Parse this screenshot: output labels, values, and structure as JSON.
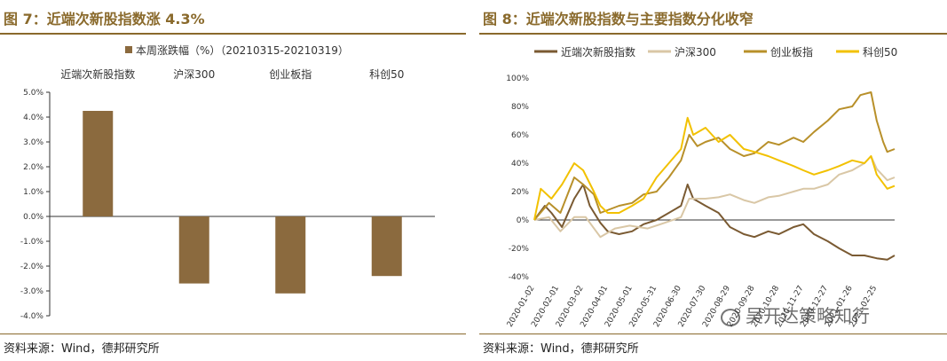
{
  "left": {
    "title": "图 7：近端次新股指数涨 4.3%",
    "source": "资料来源：Wind，德邦研究所"
  },
  "right": {
    "title": "图 8：近端次新股指数与主要指数分化收窄",
    "source": "资料来源：Wind，德邦研究所"
  },
  "watermark": {
    "text": "吴开达策略知行",
    "icon": "wechat-icon"
  },
  "chart_data": [
    {
      "type": "bar",
      "legend": [
        "本周涨跌幅（%）（20210315-20210319）"
      ],
      "legend_position": "top-center",
      "categories": [
        "近端次新股指数",
        "沪深300",
        "创业板指",
        "科创50"
      ],
      "values": [
        4.25,
        -2.7,
        -3.1,
        -2.4
      ],
      "ylim": [
        -4.0,
        5.0
      ],
      "yticks": [
        "5.0%",
        "4.0%",
        "3.0%",
        "2.0%",
        "1.0%",
        "0.0%",
        "-1.0%",
        "-2.0%",
        "-3.0%",
        "-4.0%"
      ],
      "ytick_values": [
        5,
        4,
        3,
        2,
        1,
        0,
        -1,
        -2,
        -3,
        -4
      ],
      "grid": false,
      "color": "#8b6a3e"
    },
    {
      "type": "line",
      "ylim": [
        -40,
        100
      ],
      "yticks": [
        "100%",
        "80%",
        "60%",
        "40%",
        "20%",
        "0%",
        "-20%",
        "-40%"
      ],
      "ytick_values": [
        100,
        80,
        60,
        40,
        20,
        0,
        -20,
        -40
      ],
      "xticks": [
        "2020-01-02",
        "2020-02-01",
        "2020-03-02",
        "2020-04-01",
        "2020-05-01",
        "2020-05-31",
        "2020-06-30",
        "2020-07-30",
        "2020-08-29",
        "2020-09-28",
        "2020-10-28",
        "2020-11-27",
        "2020-12-27",
        "2021-01-26",
        "2021-02-25"
      ],
      "x_range": [
        "2020-01-02",
        "2021-03-19"
      ],
      "grid": false,
      "legend_position": "top",
      "series": [
        {
          "name": "近端次新股指数",
          "color": "#7a5a32",
          "points": [
            [
              "2020-01-02",
              0
            ],
            [
              "2020-01-15",
              10
            ],
            [
              "2020-01-23",
              5
            ],
            [
              "2020-02-05",
              -5
            ],
            [
              "2020-02-20",
              15
            ],
            [
              "2020-03-02",
              25
            ],
            [
              "2020-03-10",
              10
            ],
            [
              "2020-03-23",
              -2
            ],
            [
              "2020-04-01",
              -8
            ],
            [
              "2020-04-15",
              -10
            ],
            [
              "2020-05-01",
              -8
            ],
            [
              "2020-05-15",
              -3
            ],
            [
              "2020-05-31",
              0
            ],
            [
              "2020-06-15",
              5
            ],
            [
              "2020-06-30",
              10
            ],
            [
              "2020-07-08",
              25
            ],
            [
              "2020-07-15",
              15
            ],
            [
              "2020-07-30",
              10
            ],
            [
              "2020-08-15",
              5
            ],
            [
              "2020-08-29",
              -5
            ],
            [
              "2020-09-15",
              -10
            ],
            [
              "2020-09-28",
              -12
            ],
            [
              "2020-10-15",
              -8
            ],
            [
              "2020-10-28",
              -10
            ],
            [
              "2020-11-15",
              -5
            ],
            [
              "2020-11-27",
              -3
            ],
            [
              "2020-12-10",
              -10
            ],
            [
              "2020-12-27",
              -15
            ],
            [
              "2021-01-10",
              -20
            ],
            [
              "2021-01-26",
              -25
            ],
            [
              "2021-02-10",
              -25
            ],
            [
              "2021-02-25",
              -27
            ],
            [
              "2021-03-10",
              -28
            ],
            [
              "2021-03-19",
              -25
            ]
          ]
        },
        {
          "name": "沪深300",
          "color": "#d9c7a6",
          "points": [
            [
              "2020-01-02",
              0
            ],
            [
              "2020-01-20",
              2
            ],
            [
              "2020-02-03",
              -8
            ],
            [
              "2020-02-20",
              2
            ],
            [
              "2020-03-05",
              2
            ],
            [
              "2020-03-23",
              -12
            ],
            [
              "2020-04-10",
              -6
            ],
            [
              "2020-04-28",
              -4
            ],
            [
              "2020-05-20",
              -6
            ],
            [
              "2020-06-10",
              -2
            ],
            [
              "2020-06-30",
              2
            ],
            [
              "2020-07-10",
              15
            ],
            [
              "2020-07-30",
              15
            ],
            [
              "2020-08-15",
              16
            ],
            [
              "2020-08-29",
              18
            ],
            [
              "2020-09-15",
              14
            ],
            [
              "2020-09-28",
              12
            ],
            [
              "2020-10-15",
              16
            ],
            [
              "2020-10-28",
              17
            ],
            [
              "2020-11-15",
              20
            ],
            [
              "2020-11-27",
              22
            ],
            [
              "2020-12-10",
              22
            ],
            [
              "2020-12-27",
              25
            ],
            [
              "2021-01-10",
              32
            ],
            [
              "2021-01-26",
              35
            ],
            [
              "2021-02-10",
              40
            ],
            [
              "2021-02-18",
              45
            ],
            [
              "2021-02-25",
              36
            ],
            [
              "2021-03-10",
              28
            ],
            [
              "2021-03-19",
              30
            ]
          ]
        },
        {
          "name": "创业板指",
          "color": "#b8902a",
          "points": [
            [
              "2020-01-02",
              0
            ],
            [
              "2020-01-20",
              12
            ],
            [
              "2020-02-03",
              5
            ],
            [
              "2020-02-20",
              30
            ],
            [
              "2020-03-02",
              25
            ],
            [
              "2020-03-15",
              18
            ],
            [
              "2020-03-23",
              5
            ],
            [
              "2020-04-15",
              10
            ],
            [
              "2020-05-01",
              12
            ],
            [
              "2020-05-15",
              18
            ],
            [
              "2020-05-31",
              20
            ],
            [
              "2020-06-15",
              30
            ],
            [
              "2020-06-30",
              42
            ],
            [
              "2020-07-10",
              60
            ],
            [
              "2020-07-20",
              52
            ],
            [
              "2020-07-30",
              55
            ],
            [
              "2020-08-15",
              58
            ],
            [
              "2020-08-29",
              50
            ],
            [
              "2020-09-15",
              45
            ],
            [
              "2020-09-28",
              47
            ],
            [
              "2020-10-15",
              55
            ],
            [
              "2020-10-28",
              53
            ],
            [
              "2020-11-15",
              58
            ],
            [
              "2020-11-27",
              55
            ],
            [
              "2020-12-10",
              62
            ],
            [
              "2020-12-27",
              70
            ],
            [
              "2021-01-10",
              78
            ],
            [
              "2021-01-26",
              80
            ],
            [
              "2021-02-05",
              88
            ],
            [
              "2021-02-18",
              90
            ],
            [
              "2021-02-25",
              70
            ],
            [
              "2021-03-05",
              55
            ],
            [
              "2021-03-10",
              48
            ],
            [
              "2021-03-19",
              50
            ]
          ]
        },
        {
          "name": "科创50",
          "color": "#f2c100",
          "points": [
            [
              "2020-01-02",
              0
            ],
            [
              "2020-01-10",
              22
            ],
            [
              "2020-01-23",
              15
            ],
            [
              "2020-02-05",
              25
            ],
            [
              "2020-02-20",
              40
            ],
            [
              "2020-03-02",
              35
            ],
            [
              "2020-03-15",
              20
            ],
            [
              "2020-03-23",
              10
            ],
            [
              "2020-04-01",
              5
            ],
            [
              "2020-04-15",
              5
            ],
            [
              "2020-05-01",
              10
            ],
            [
              "2020-05-15",
              15
            ],
            [
              "2020-05-31",
              30
            ],
            [
              "2020-06-15",
              40
            ],
            [
              "2020-06-30",
              50
            ],
            [
              "2020-07-08",
              72
            ],
            [
              "2020-07-15",
              60
            ],
            [
              "2020-07-30",
              65
            ],
            [
              "2020-08-15",
              55
            ],
            [
              "2020-08-29",
              60
            ],
            [
              "2020-09-15",
              50
            ],
            [
              "2020-09-28",
              48
            ],
            [
              "2020-10-15",
              45
            ],
            [
              "2020-10-28",
              42
            ],
            [
              "2020-11-15",
              38
            ],
            [
              "2020-11-27",
              35
            ],
            [
              "2020-12-10",
              32
            ],
            [
              "2020-12-27",
              35
            ],
            [
              "2021-01-10",
              38
            ],
            [
              "2021-01-26",
              42
            ],
            [
              "2021-02-10",
              40
            ],
            [
              "2021-02-18",
              45
            ],
            [
              "2021-02-25",
              32
            ],
            [
              "2021-03-10",
              22
            ],
            [
              "2021-03-19",
              24
            ]
          ]
        }
      ]
    }
  ]
}
